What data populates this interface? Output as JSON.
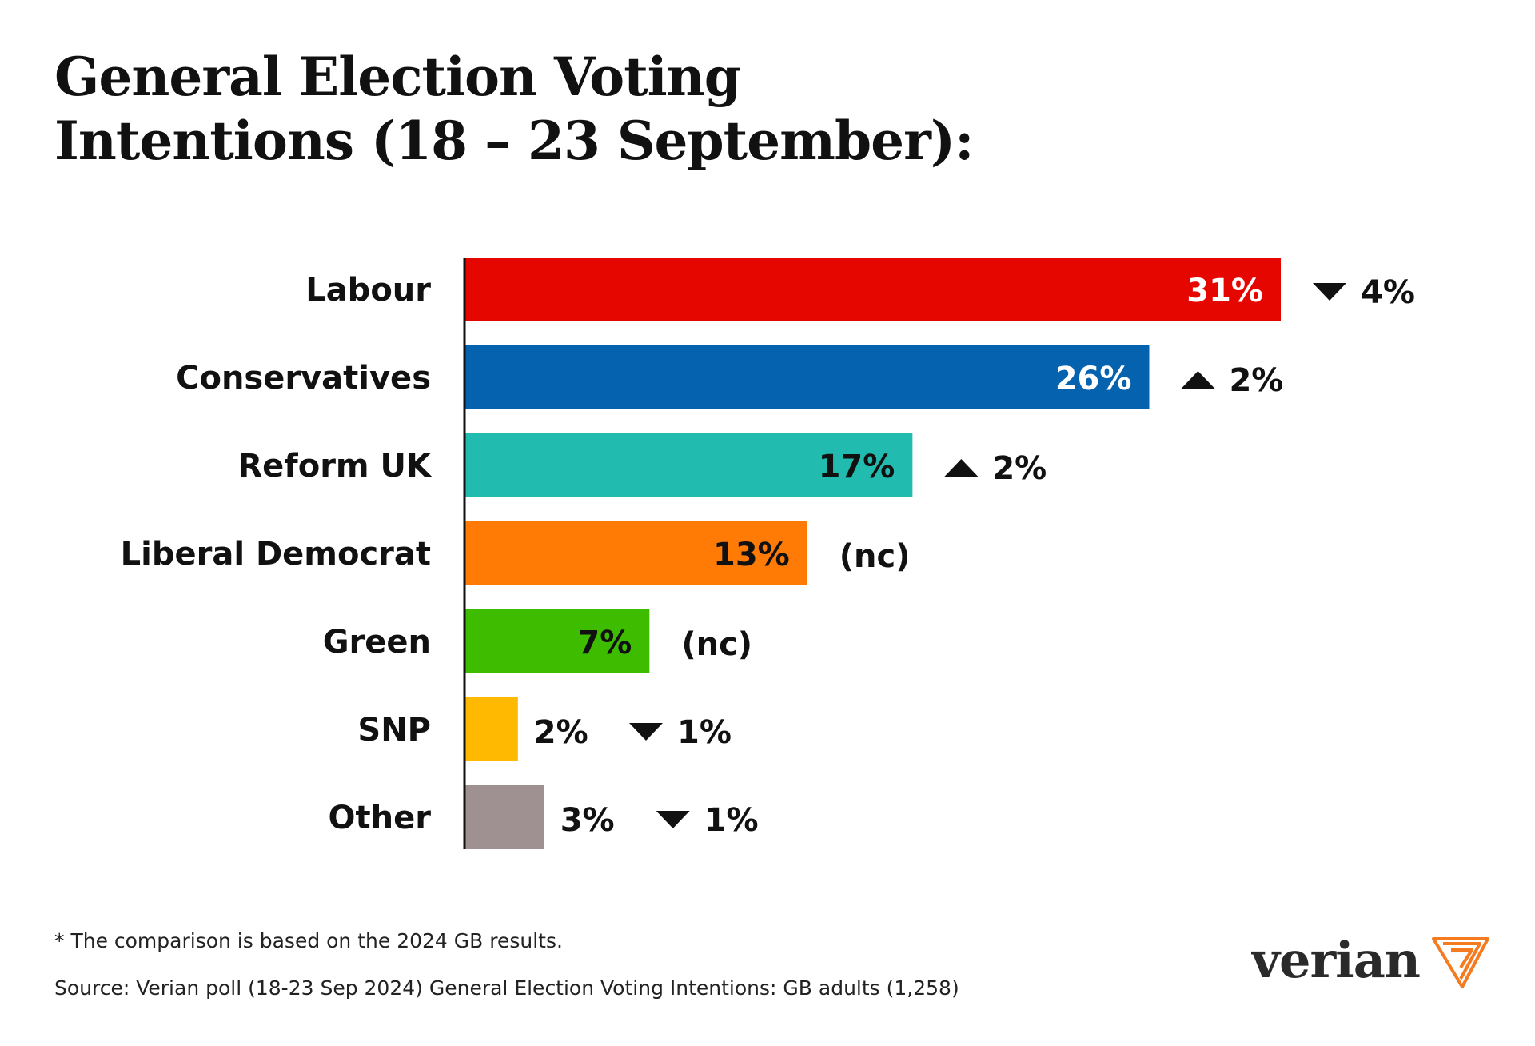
{
  "title_lines": [
    "General Election Voting",
    "Intentions (18 – 23 September):"
  ],
  "chart_data": {
    "type": "bar",
    "orientation": "horizontal",
    "title": "General Election Voting Intentions (18 – 23 September):",
    "categories": [
      "Labour",
      "Conservatives",
      "Reform UK",
      "Liberal Democrat",
      "Green",
      "SNP",
      "Other"
    ],
    "values": [
      31,
      26,
      17,
      13,
      7,
      2,
      3
    ],
    "value_labels": [
      "31%",
      "26%",
      "17%",
      "13%",
      "7%",
      "2%",
      "3%"
    ],
    "changes": [
      {
        "direction": "down",
        "label": "4%"
      },
      {
        "direction": "up",
        "label": "2%"
      },
      {
        "direction": "up",
        "label": "2%"
      },
      {
        "direction": "none",
        "label": "(nc)"
      },
      {
        "direction": "none",
        "label": "(nc)"
      },
      {
        "direction": "down",
        "label": "1%"
      },
      {
        "direction": "down",
        "label": "1%"
      }
    ],
    "colors": [
      "#e60600",
      "#0562af",
      "#22bbaf",
      "#ff7b06",
      "#3dbc00",
      "#ffb900",
      "#9f9192"
    ],
    "value_label_colors": [
      "#ffffff",
      "#ffffff",
      "#111111",
      "#111111",
      "#111111",
      "#111111",
      "#111111"
    ],
    "xlim": [
      0,
      31
    ],
    "grid": false,
    "legend": "none"
  },
  "footnote": "*  The comparison is based on the 2024 GB results.",
  "source": "Source: Verian poll (18-23 Sep 2024) General Election Voting Intentions: GB adults (1,258)",
  "logo": {
    "text": "verian",
    "accent": "#f47b20"
  }
}
